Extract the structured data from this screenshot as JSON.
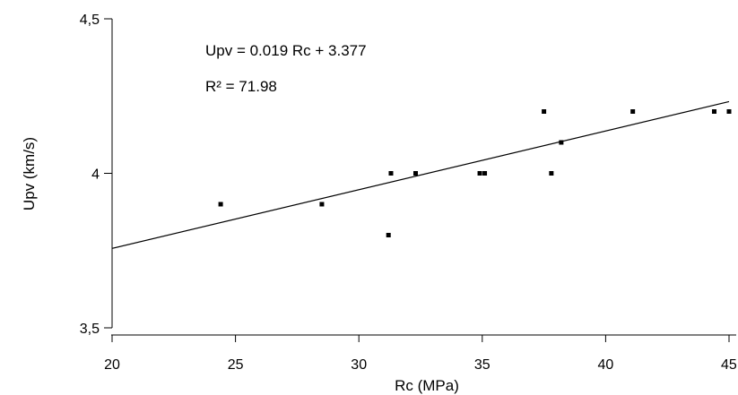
{
  "chart_data": {
    "type": "scatter",
    "title": "",
    "xlabel": "Rc (MPa)",
    "ylabel": "Upv (km/s)",
    "xlim": [
      20,
      45
    ],
    "ylim": [
      3.5,
      4.5
    ],
    "x_ticks": [
      20,
      25,
      30,
      35,
      40,
      45
    ],
    "x_tick_labels": [
      "20",
      "25",
      "30",
      "35",
      "40",
      "45"
    ],
    "y_ticks": [
      3.5,
      4.0,
      4.5
    ],
    "y_tick_labels": [
      "3,5",
      "4",
      "4,5"
    ],
    "grid": false,
    "series": [
      {
        "points": [
          {
            "x": 24.4,
            "y": 3.9
          },
          {
            "x": 28.5,
            "y": 3.9
          },
          {
            "x": 31.2,
            "y": 3.8
          },
          {
            "x": 31.3,
            "y": 4.0
          },
          {
            "x": 32.3,
            "y": 4.0
          },
          {
            "x": 34.9,
            "y": 4.0
          },
          {
            "x": 35.1,
            "y": 4.0
          },
          {
            "x": 37.5,
            "y": 4.2
          },
          {
            "x": 37.8,
            "y": 4.0
          },
          {
            "x": 38.2,
            "y": 4.1
          },
          {
            "x": 41.1,
            "y": 4.2
          },
          {
            "x": 44.4,
            "y": 4.2
          },
          {
            "x": 45.0,
            "y": 4.2
          }
        ]
      }
    ],
    "trendline": {
      "slope": 0.019,
      "intercept": 3.377,
      "x_range": [
        20,
        45
      ]
    },
    "annotations": [
      "Upv = 0.019 Rc + 3.377",
      "R² = 71.98"
    ]
  }
}
